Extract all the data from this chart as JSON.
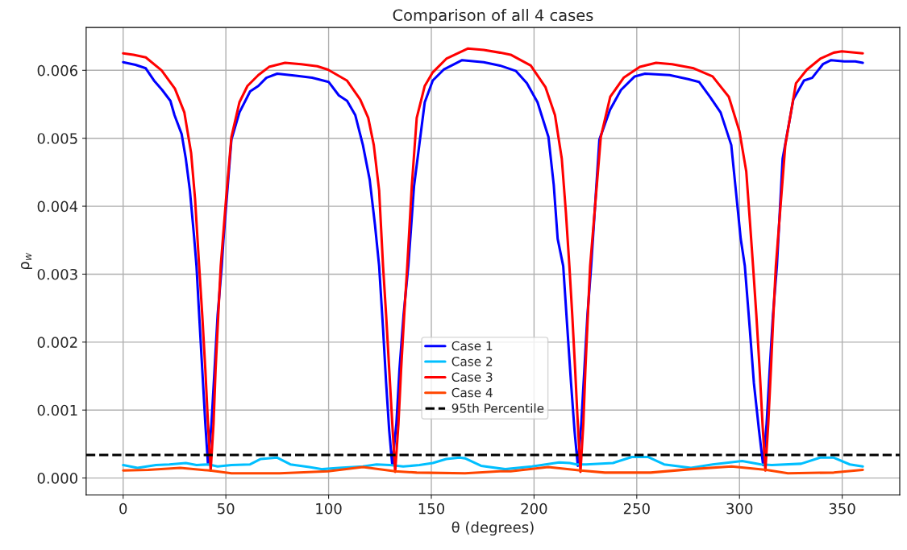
{
  "chart_data": {
    "type": "line",
    "title": "Comparison of all 4 cases",
    "xlabel": "θ (degrees)",
    "ylabel": "ρ$_{w}$",
    "xlim": [
      -18,
      378
    ],
    "xticks": [
      0,
      50,
      100,
      150,
      200,
      250,
      300,
      350
    ],
    "ylim": [
      -0.00025,
      0.00663
    ],
    "yticks": [
      {
        "value": 0,
        "label": "0.000"
      },
      {
        "value": 0.001,
        "label": "0.001"
      },
      {
        "value": 0.002,
        "label": "0.002"
      },
      {
        "value": 0.003,
        "label": "0.003"
      },
      {
        "value": 0.004,
        "label": "0.004"
      },
      {
        "value": 0.005,
        "label": "0.005"
      },
      {
        "value": 0.006,
        "label": "0.006"
      }
    ],
    "grid": true,
    "legend": "center",
    "line_style": "solid",
    "series": [
      {
        "name": "Case 1",
        "color": "#0000ff",
        "x": [
          0,
          6,
          11,
          15,
          19,
          23,
          25,
          28.5,
          30.5,
          32.5,
          34.5,
          35.7,
          37,
          38.5,
          40,
          41.3,
          43,
          44.5,
          46,
          48,
          48.8,
          52.7,
          56.6,
          61.8,
          65.8,
          69.7,
          75,
          84,
          92,
          100,
          105,
          109,
          113,
          116.7,
          120,
          122.6,
          124.6,
          126.5,
          128,
          129.5,
          131,
          133,
          134.5,
          136.5,
          138.8,
          141.6,
          146.8,
          150.7,
          156,
          165,
          175.5,
          183.4,
          191.2,
          196.5,
          201.7,
          207,
          209.6,
          211.5,
          214.2,
          216,
          218,
          219.7,
          221.3,
          223,
          224.5,
          226,
          227.8,
          231.8,
          237,
          242.3,
          249,
          254,
          266,
          275,
          280.3,
          285.6,
          290.8,
          296,
          300.6,
          302.6,
          305,
          307,
          309.5,
          311.5,
          313.2,
          314.7,
          316.3,
          318.2,
          321,
          326.2,
          331.4,
          335.4,
          340.6,
          344.6,
          351,
          356.4,
          360
        ],
        "values": [
          0.00612,
          0.00608,
          0.00603,
          0.00585,
          0.00571,
          0.00555,
          0.00534,
          0.00506,
          0.0047,
          0.00423,
          0.00356,
          0.00312,
          0.0024,
          0.0016,
          0.0008,
          0.0002,
          0.0008,
          0.0016,
          0.0024,
          0.00312,
          0.0035,
          0.00498,
          0.00538,
          0.00569,
          0.00577,
          0.00589,
          0.00595,
          0.00592,
          0.00589,
          0.00583,
          0.00563,
          0.00555,
          0.00534,
          0.0049,
          0.00439,
          0.00372,
          0.00312,
          0.0022,
          0.0014,
          0.0007,
          0.00019,
          0.0008,
          0.0016,
          0.0024,
          0.00312,
          0.0043,
          0.00553,
          0.00585,
          0.00601,
          0.00615,
          0.00612,
          0.00607,
          0.00599,
          0.00581,
          0.00553,
          0.00502,
          0.00431,
          0.00352,
          0.00312,
          0.0023,
          0.0014,
          0.0007,
          0.00018,
          0.0008,
          0.0016,
          0.0024,
          0.00312,
          0.00498,
          0.00542,
          0.00571,
          0.00591,
          0.00595,
          0.00593,
          0.00587,
          0.00583,
          0.00561,
          0.00538,
          0.0049,
          0.00352,
          0.00312,
          0.0022,
          0.0014,
          0.0007,
          0.00019,
          0.0008,
          0.0016,
          0.0024,
          0.00312,
          0.0047,
          0.00557,
          0.00585,
          0.00589,
          0.00609,
          0.00615,
          0.00613,
          0.00613,
          0.00611
        ]
      },
      {
        "name": "Case 2",
        "color": "#00bfff",
        "x": [
          0,
          7,
          16,
          22.5,
          30.5,
          35.7,
          41.6,
          46,
          52.7,
          61.8,
          67,
          75,
          81.4,
          90.6,
          97,
          105,
          116.7,
          123.3,
          129.8,
          136.3,
          144.2,
          150.7,
          157.3,
          163.8,
          166.4,
          174.2,
          186,
          199,
          212.2,
          217.4,
          220.7,
          225.3,
          238.4,
          247.6,
          255.4,
          263.3,
          276.4,
          286.9,
          301.3,
          310.5,
          315.7,
          330,
          339.3,
          345.9,
          353.7,
          360
        ],
        "values": [
          0.00019,
          0.00015,
          0.00019,
          0.0002,
          0.00022,
          0.00019,
          0.0002,
          0.00017,
          0.00019,
          0.0002,
          0.00028,
          0.0003,
          0.0002,
          0.00016,
          0.00013,
          0.00015,
          0.00017,
          0.0002,
          0.00019,
          0.00017,
          0.00019,
          0.00022,
          0.00028,
          0.0003,
          0.00029,
          0.00018,
          0.00013,
          0.00017,
          0.00023,
          0.00022,
          0.0002,
          0.0002,
          0.00022,
          0.00031,
          0.00031,
          0.0002,
          0.00015,
          0.0002,
          0.00025,
          0.0002,
          0.00019,
          0.00021,
          0.0003,
          0.0003,
          0.0002,
          0.00017
        ]
      },
      {
        "name": "Case 3",
        "color": "#ff0000",
        "x": [
          0,
          5,
          11,
          18.7,
          25.2,
          29.8,
          33.1,
          35,
          37,
          38.5,
          40,
          41.3,
          42.6,
          44,
          45,
          46.3,
          47.5,
          50.1,
          52.7,
          56.6,
          60.5,
          65.8,
          71,
          78.8,
          86.7,
          94.5,
          99.7,
          108.9,
          115.4,
          119.3,
          122,
          124.6,
          126.5,
          128,
          129.5,
          131,
          132.4,
          134,
          135.3,
          136.8,
          138.3,
          140.5,
          142.9,
          146.8,
          150.7,
          157.3,
          167.7,
          175.5,
          183.4,
          188.6,
          198.4,
          205.6,
          210.2,
          213.5,
          215.5,
          217.2,
          218.6,
          220,
          221.3,
          222.6,
          224,
          225,
          226.2,
          227.3,
          232.5,
          237.1,
          243.6,
          251.5,
          259.4,
          267.2,
          277.7,
          286.9,
          294.8,
          300,
          303.3,
          305.2,
          306.6,
          308.2,
          309.8,
          311.2,
          312.6,
          314,
          315.3,
          316.5,
          317.7,
          322.3,
          327.5,
          332.8,
          339.3,
          345.9,
          349.8,
          360
        ],
        "values": [
          0.00625,
          0.00623,
          0.00619,
          0.006,
          0.00573,
          0.00538,
          0.00478,
          0.00411,
          0.00312,
          0.0024,
          0.0016,
          0.0008,
          0.00011,
          0.0008,
          0.0016,
          0.0024,
          0.00312,
          0.00411,
          0.00502,
          0.00553,
          0.00577,
          0.00593,
          0.00605,
          0.00611,
          0.00609,
          0.00606,
          0.00601,
          0.00585,
          0.00557,
          0.0053,
          0.0049,
          0.00423,
          0.00312,
          0.0024,
          0.0016,
          0.0008,
          9e-05,
          0.0008,
          0.0016,
          0.0024,
          0.00312,
          0.0043,
          0.0053,
          0.00577,
          0.00597,
          0.00617,
          0.00632,
          0.0063,
          0.00626,
          0.00623,
          0.00607,
          0.00575,
          0.00534,
          0.0047,
          0.00391,
          0.00312,
          0.0024,
          0.0016,
          0.0008,
          9e-05,
          0.0008,
          0.0016,
          0.0024,
          0.00312,
          0.00502,
          0.00561,
          0.00589,
          0.00605,
          0.00611,
          0.00609,
          0.00603,
          0.00591,
          0.00561,
          0.0051,
          0.00451,
          0.00372,
          0.00312,
          0.0024,
          0.0016,
          0.0008,
          0.00011,
          0.0008,
          0.0016,
          0.0024,
          0.00312,
          0.0049,
          0.00581,
          0.00601,
          0.00617,
          0.00626,
          0.00628,
          0.00625
        ]
      },
      {
        "name": "Case 4",
        "color": "#ff4500",
        "x": [
          0,
          12.2,
          27.8,
          42.2,
          52.7,
          76.2,
          99.7,
          116.7,
          132.4,
          142.9,
          166.4,
          183.4,
          188.6,
          206.9,
          222.7,
          234.5,
          256.7,
          276.4,
          296.1,
          313.1,
          323.6,
          345.9,
          360
        ],
        "values": [
          0.00011,
          0.00012,
          0.00015,
          0.00011,
          7e-05,
          7e-05,
          0.0001,
          0.00016,
          0.0001,
          8e-05,
          7e-05,
          0.0001,
          0.0001,
          0.00016,
          0.00011,
          8e-05,
          8e-05,
          0.00013,
          0.00017,
          0.00012,
          7e-05,
          8e-05,
          0.00012
        ]
      }
    ],
    "ref_lines": [
      {
        "axis": "y",
        "value": 0.00034,
        "label": "95th Percentile",
        "color": "#000000",
        "line_style": "dashed"
      }
    ]
  }
}
